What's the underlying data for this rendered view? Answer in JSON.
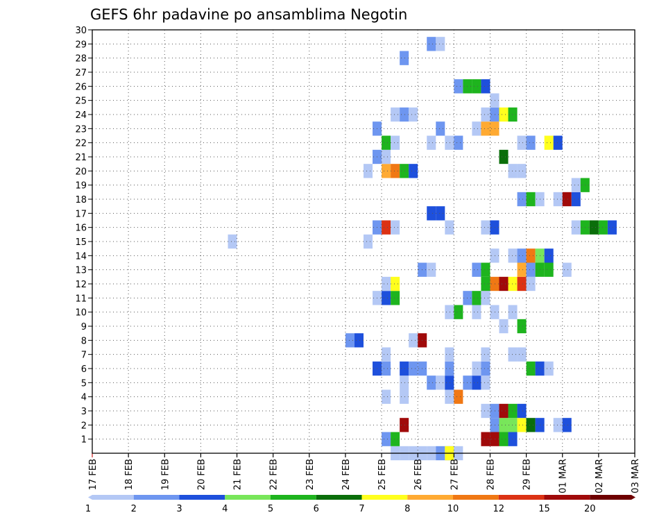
{
  "chart_data": {
    "type": "heatmap",
    "title": "GEFS 6hr padavine po ansamblima Negotin",
    "xlabel": "",
    "ylabel": "",
    "grid": true,
    "legend_position": "bottom",
    "x_tick_labels": [
      "17 FEB",
      "18 FEB",
      "19 FEB",
      "20 FEB",
      "21 FEB",
      "22 FEB",
      "23 FEB",
      "24 FEB",
      "25 FEB",
      "26 FEB",
      "27 FEB",
      "28 FEB",
      "29 FEB",
      "01 MAR",
      "02 MAR",
      "03 MAR"
    ],
    "x_range_days": [
      0,
      15
    ],
    "y_tick_labels": [
      "1",
      "2",
      "3",
      "4",
      "5",
      "6",
      "7",
      "8",
      "9",
      "10",
      "11",
      "12",
      "13",
      "14",
      "15",
      "16",
      "17",
      "18",
      "19",
      "20",
      "21",
      "22",
      "23",
      "24",
      "25",
      "26",
      "27",
      "28",
      "29",
      "30"
    ],
    "y_range": [
      0,
      30
    ],
    "color_levels": [
      "1",
      "2",
      "3",
      "4",
      "5",
      "6",
      "7",
      "8",
      "10",
      "12",
      "15",
      "20"
    ],
    "colors": [
      "#b4c8f5",
      "#6e96f0",
      "#1e50dc",
      "#78e65a",
      "#1eb41e",
      "#0a6e0a",
      "#ffff1e",
      "#ffaa32",
      "#f07814",
      "#dc3214",
      "#a00a0a",
      "#6e0000"
    ],
    "cells": [
      [
        8.25,
        0,
        0
      ],
      [
        8.5,
        0,
        0
      ],
      [
        8.75,
        0,
        0
      ],
      [
        9.0,
        0,
        0
      ],
      [
        9.25,
        0,
        0
      ],
      [
        9.5,
        0,
        1
      ],
      [
        9.75,
        0,
        1
      ],
      [
        9.75,
        0,
        6
      ],
      [
        10.0,
        0,
        0
      ],
      [
        8.0,
        1,
        1
      ],
      [
        8.25,
        1,
        4
      ],
      [
        10.75,
        1,
        10
      ],
      [
        11.0,
        1,
        10
      ],
      [
        11.25,
        1,
        4
      ],
      [
        11.5,
        1,
        2
      ],
      [
        8.5,
        2,
        10
      ],
      [
        11.0,
        2,
        1
      ],
      [
        11.25,
        2,
        3
      ],
      [
        11.5,
        2,
        3
      ],
      [
        11.75,
        2,
        6
      ],
      [
        12.0,
        2,
        5
      ],
      [
        12.25,
        2,
        2
      ],
      [
        12.75,
        2,
        0
      ],
      [
        13.0,
        2,
        2
      ],
      [
        10.75,
        3,
        0
      ],
      [
        11.0,
        3,
        1
      ],
      [
        11.25,
        3,
        10
      ],
      [
        11.5,
        3,
        4
      ],
      [
        11.75,
        3,
        2
      ],
      [
        8.0,
        4,
        0
      ],
      [
        8.5,
        4,
        0
      ],
      [
        9.75,
        4,
        0
      ],
      [
        10.0,
        4,
        8
      ],
      [
        8.5,
        5,
        0
      ],
      [
        9.25,
        5,
        1
      ],
      [
        9.5,
        5,
        0
      ],
      [
        9.75,
        5,
        2
      ],
      [
        10.25,
        5,
        1
      ],
      [
        10.5,
        5,
        2
      ],
      [
        10.75,
        5,
        0
      ],
      [
        7.75,
        6,
        2
      ],
      [
        8.0,
        6,
        1
      ],
      [
        8.5,
        6,
        2
      ],
      [
        8.75,
        6,
        1
      ],
      [
        9.0,
        6,
        1
      ],
      [
        9.75,
        6,
        1
      ],
      [
        10.5,
        6,
        0
      ],
      [
        10.75,
        6,
        1
      ],
      [
        12.0,
        6,
        4
      ],
      [
        12.25,
        6,
        2
      ],
      [
        12.5,
        6,
        0
      ],
      [
        8.0,
        7,
        0
      ],
      [
        9.75,
        7,
        0
      ],
      [
        10.75,
        7,
        0
      ],
      [
        11.5,
        7,
        0
      ],
      [
        11.75,
        7,
        0
      ],
      [
        7.0,
        8,
        1
      ],
      [
        7.25,
        8,
        2
      ],
      [
        8.75,
        8,
        0
      ],
      [
        9.0,
        8,
        10
      ],
      [
        11.25,
        9,
        0
      ],
      [
        11.75,
        9,
        4
      ],
      [
        9.75,
        10,
        0
      ],
      [
        10.0,
        10,
        4
      ],
      [
        10.5,
        10,
        0
      ],
      [
        11.0,
        10,
        0
      ],
      [
        11.5,
        10,
        0
      ],
      [
        7.75,
        11,
        0
      ],
      [
        8.0,
        11,
        2
      ],
      [
        8.25,
        11,
        4
      ],
      [
        10.25,
        11,
        1
      ],
      [
        10.5,
        11,
        4
      ],
      [
        10.75,
        11,
        0
      ],
      [
        8.0,
        12,
        0
      ],
      [
        8.25,
        12,
        6
      ],
      [
        10.75,
        12,
        4
      ],
      [
        11.0,
        12,
        8
      ],
      [
        11.25,
        12,
        10
      ],
      [
        11.5,
        12,
        6
      ],
      [
        11.75,
        12,
        9
      ],
      [
        12.0,
        12,
        0
      ],
      [
        9.0,
        13,
        1
      ],
      [
        9.25,
        13,
        0
      ],
      [
        10.5,
        13,
        1
      ],
      [
        10.75,
        13,
        4
      ],
      [
        11.75,
        13,
        7
      ],
      [
        12.0,
        13,
        1
      ],
      [
        12.25,
        13,
        4
      ],
      [
        12.5,
        13,
        4
      ],
      [
        13.0,
        13,
        0
      ],
      [
        11.0,
        14,
        0
      ],
      [
        11.5,
        14,
        0
      ],
      [
        11.75,
        14,
        1
      ],
      [
        12.0,
        14,
        8
      ],
      [
        12.25,
        14,
        3
      ],
      [
        12.5,
        14,
        2
      ],
      [
        3.75,
        15,
        0
      ],
      [
        7.5,
        15,
        0
      ],
      [
        7.75,
        16,
        1
      ],
      [
        8.0,
        16,
        9
      ],
      [
        8.25,
        16,
        0
      ],
      [
        9.75,
        16,
        0
      ],
      [
        10.75,
        16,
        0
      ],
      [
        11.0,
        16,
        2
      ],
      [
        13.25,
        16,
        0
      ],
      [
        13.5,
        16,
        4
      ],
      [
        13.75,
        16,
        5
      ],
      [
        14.0,
        16,
        4
      ],
      [
        14.25,
        16,
        2
      ],
      [
        9.25,
        17,
        2
      ],
      [
        9.5,
        17,
        2
      ],
      [
        11.75,
        18,
        1
      ],
      [
        12.0,
        18,
        4
      ],
      [
        12.25,
        18,
        0
      ],
      [
        12.75,
        18,
        0
      ],
      [
        13.0,
        18,
        10
      ],
      [
        13.25,
        18,
        2
      ],
      [
        13.25,
        19,
        0
      ],
      [
        13.5,
        19,
        4
      ],
      [
        7.5,
        20,
        0
      ],
      [
        8.0,
        20,
        7
      ],
      [
        8.25,
        20,
        8
      ],
      [
        8.5,
        20,
        4
      ],
      [
        8.75,
        20,
        2
      ],
      [
        11.5,
        20,
        0
      ],
      [
        11.75,
        20,
        0
      ],
      [
        7.75,
        21,
        1
      ],
      [
        8.0,
        21,
        0
      ],
      [
        11.25,
        21,
        5
      ],
      [
        8.0,
        22,
        4
      ],
      [
        8.25,
        22,
        0
      ],
      [
        9.25,
        22,
        0
      ],
      [
        9.75,
        22,
        0
      ],
      [
        10.0,
        22,
        1
      ],
      [
        11.75,
        22,
        0
      ],
      [
        12.0,
        22,
        1
      ],
      [
        12.5,
        22,
        6
      ],
      [
        12.75,
        22,
        2
      ],
      [
        7.75,
        23,
        1
      ],
      [
        9.5,
        23,
        1
      ],
      [
        10.5,
        23,
        0
      ],
      [
        10.75,
        23,
        7
      ],
      [
        11.0,
        23,
        7
      ],
      [
        8.25,
        24,
        0
      ],
      [
        8.5,
        24,
        1
      ],
      [
        8.75,
        24,
        0
      ],
      [
        10.75,
        24,
        0
      ],
      [
        11.0,
        24,
        1
      ],
      [
        11.25,
        24,
        6
      ],
      [
        11.5,
        24,
        4
      ],
      [
        11.0,
        25,
        0
      ],
      [
        10.0,
        26,
        1
      ],
      [
        10.25,
        26,
        4
      ],
      [
        10.5,
        26,
        4
      ],
      [
        10.75,
        26,
        2
      ],
      [
        8.5,
        28,
        1
      ],
      [
        9.25,
        29,
        1
      ],
      [
        9.5,
        29,
        0
      ]
    ]
  }
}
